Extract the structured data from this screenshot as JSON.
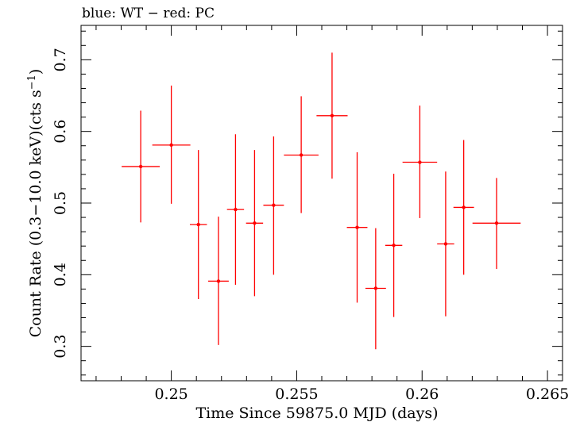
{
  "chart_data": {
    "type": "scatter",
    "title": "blue: WT − red: PC",
    "xlabel": "Time Since 59875.0 MJD (days)",
    "ylabel_main": "Count Rate (0.3−10.0 keV)(cts s",
    "ylabel_sup": "−1",
    "ylabel_end": ")",
    "xlim": [
      0.2464,
      0.2656
    ],
    "ylim": [
      0.252,
      0.748
    ],
    "xticks": [
      0.25,
      0.255,
      0.26,
      0.265
    ],
    "xtick_labels": [
      "0.25",
      "0.255",
      "0.26",
      "0.265"
    ],
    "yticks": [
      0.3,
      0.4,
      0.5,
      0.6,
      0.7
    ],
    "ytick_labels": [
      "0.3",
      "0.4",
      "0.5",
      "0.6",
      "0.7"
    ],
    "grid": false,
    "series": [
      {
        "color": "#ff0000",
        "points": [
          {
            "x": 0.24878,
            "xerr": 0.00076,
            "y": 0.551,
            "ylo": 0.473,
            "yhi": 0.629
          },
          {
            "x": 0.25,
            "xerr": 0.00076,
            "y": 0.581,
            "ylo": 0.499,
            "yhi": 0.664
          },
          {
            "x": 0.25108,
            "xerr": 0.00034,
            "y": 0.47,
            "ylo": 0.366,
            "yhi": 0.574
          },
          {
            "x": 0.25188,
            "xerr": 0.00041,
            "y": 0.391,
            "ylo": 0.302,
            "yhi": 0.481
          },
          {
            "x": 0.25256,
            "xerr": 0.00034,
            "y": 0.491,
            "ylo": 0.386,
            "yhi": 0.596
          },
          {
            "x": 0.25332,
            "xerr": 0.00034,
            "y": 0.472,
            "ylo": 0.37,
            "yhi": 0.574
          },
          {
            "x": 0.25408,
            "xerr": 0.00041,
            "y": 0.497,
            "ylo": 0.4,
            "yhi": 0.593
          },
          {
            "x": 0.25518,
            "xerr": 0.00069,
            "y": 0.567,
            "ylo": 0.486,
            "yhi": 0.649
          },
          {
            "x": 0.25641,
            "xerr": 0.00062,
            "y": 0.622,
            "ylo": 0.534,
            "yhi": 0.71
          },
          {
            "x": 0.25741,
            "xerr": 0.00041,
            "y": 0.466,
            "ylo": 0.361,
            "yhi": 0.571
          },
          {
            "x": 0.25815,
            "xerr": 0.00041,
            "y": 0.381,
            "ylo": 0.296,
            "yhi": 0.465
          },
          {
            "x": 0.25887,
            "xerr": 0.00034,
            "y": 0.441,
            "ylo": 0.341,
            "yhi": 0.541
          },
          {
            "x": 0.25991,
            "xerr": 0.00069,
            "y": 0.557,
            "ylo": 0.479,
            "yhi": 0.636
          },
          {
            "x": 0.26094,
            "xerr": 0.00034,
            "y": 0.443,
            "ylo": 0.342,
            "yhi": 0.544
          },
          {
            "x": 0.26166,
            "xerr": 0.00041,
            "y": 0.494,
            "ylo": 0.4,
            "yhi": 0.588
          },
          {
            "x": 0.26297,
            "xerr": 0.00096,
            "y": 0.472,
            "ylo": 0.408,
            "yhi": 0.535
          }
        ]
      }
    ]
  }
}
